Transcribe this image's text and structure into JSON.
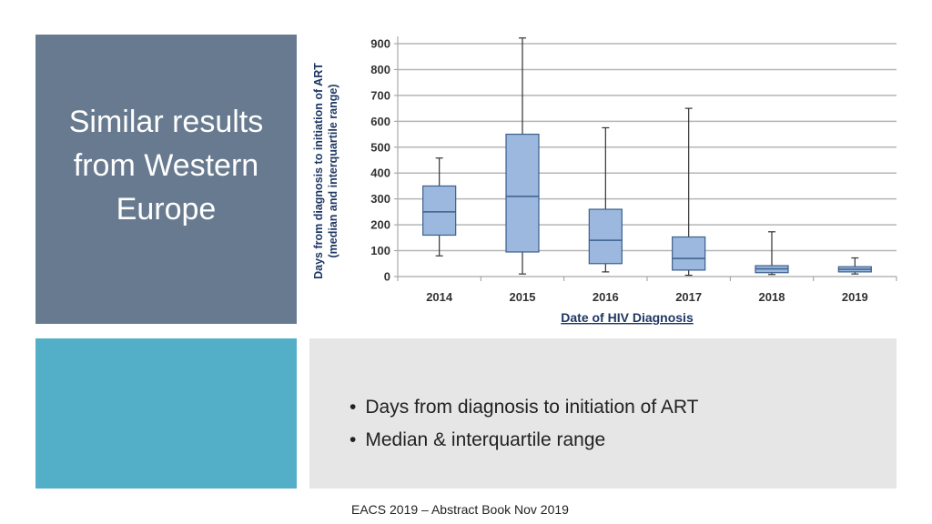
{
  "slide": {
    "title": "Similar results from Western Europe",
    "bullets": [
      "Days from diagnosis to initiation of ART",
      "Median &  interquartile range"
    ],
    "footer": "EACS 2019 – Abstract Book Nov 2019"
  },
  "colors": {
    "title_panel": "#687a8f",
    "teal_panel": "#53afc8",
    "bullet_panel": "#e6e6e6",
    "box_fill": "#9cb8de",
    "box_stroke": "#3b5f8c"
  },
  "chart_data": {
    "type": "box",
    "xlabel": "Date of HIV Diagnosis",
    "ylabel_line1": "Days from diagnosis to initiation of ART",
    "ylabel_line2": "(median and interquartile range)",
    "ylim": [
      0,
      900
    ],
    "yticks": [
      0,
      100,
      200,
      300,
      400,
      500,
      600,
      700,
      800,
      900
    ],
    "grid": true,
    "categories": [
      "2014",
      "2015",
      "2016",
      "2017",
      "2018",
      "2019"
    ],
    "boxes": [
      {
        "min": 80,
        "q1": 160,
        "median": 250,
        "q3": 350,
        "max": 458
      },
      {
        "min": 10,
        "q1": 95,
        "median": 310,
        "q3": 550,
        "max": 922
      },
      {
        "min": 18,
        "q1": 50,
        "median": 140,
        "q3": 260,
        "max": 575
      },
      {
        "min": 5,
        "q1": 25,
        "median": 70,
        "q3": 153,
        "max": 650
      },
      {
        "min": 8,
        "q1": 15,
        "median": 30,
        "q3": 42,
        "max": 173
      },
      {
        "min": 10,
        "q1": 18,
        "median": 28,
        "q3": 38,
        "max": 72
      }
    ]
  }
}
